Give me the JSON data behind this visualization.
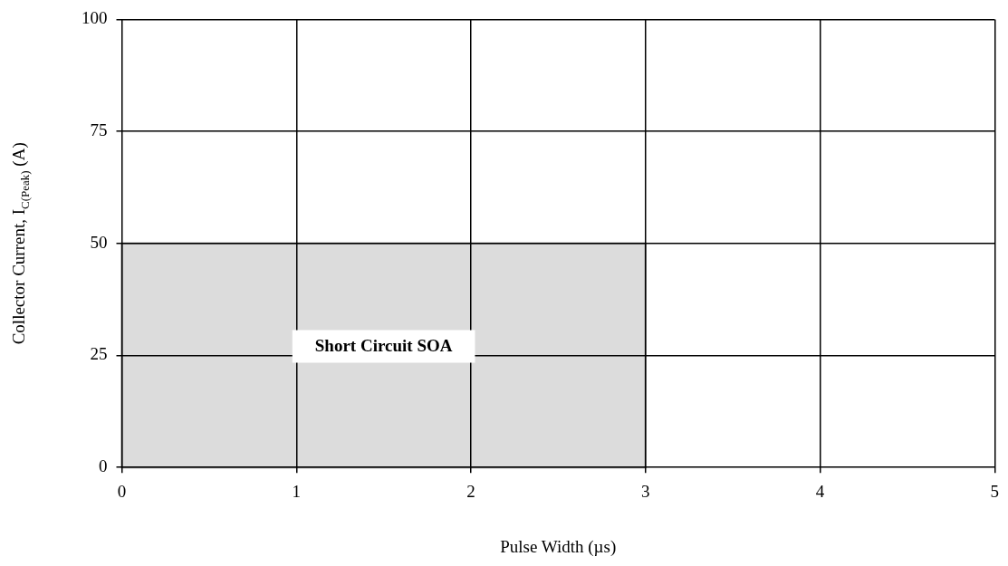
{
  "chart_data": {
    "type": "histogram",
    "xlabel": "Pulse Width (µs)",
    "ylabel": "Collector Current, I$_{C(Peak)}$ (A)",
    "bins": [
      0,
      3
    ],
    "values": [
      50
    ],
    "color": "#dcdcdc",
    "annotations": [
      "Short Circuit SOA"
    ],
    "xlim": [
      0,
      5
    ],
    "xticks": [
      0,
      1,
      2,
      3,
      4,
      5
    ],
    "ylim": [
      0,
      100
    ],
    "yticks": [
      0,
      25,
      50,
      75,
      100
    ],
    "grid": true,
    "legend": false
  }
}
